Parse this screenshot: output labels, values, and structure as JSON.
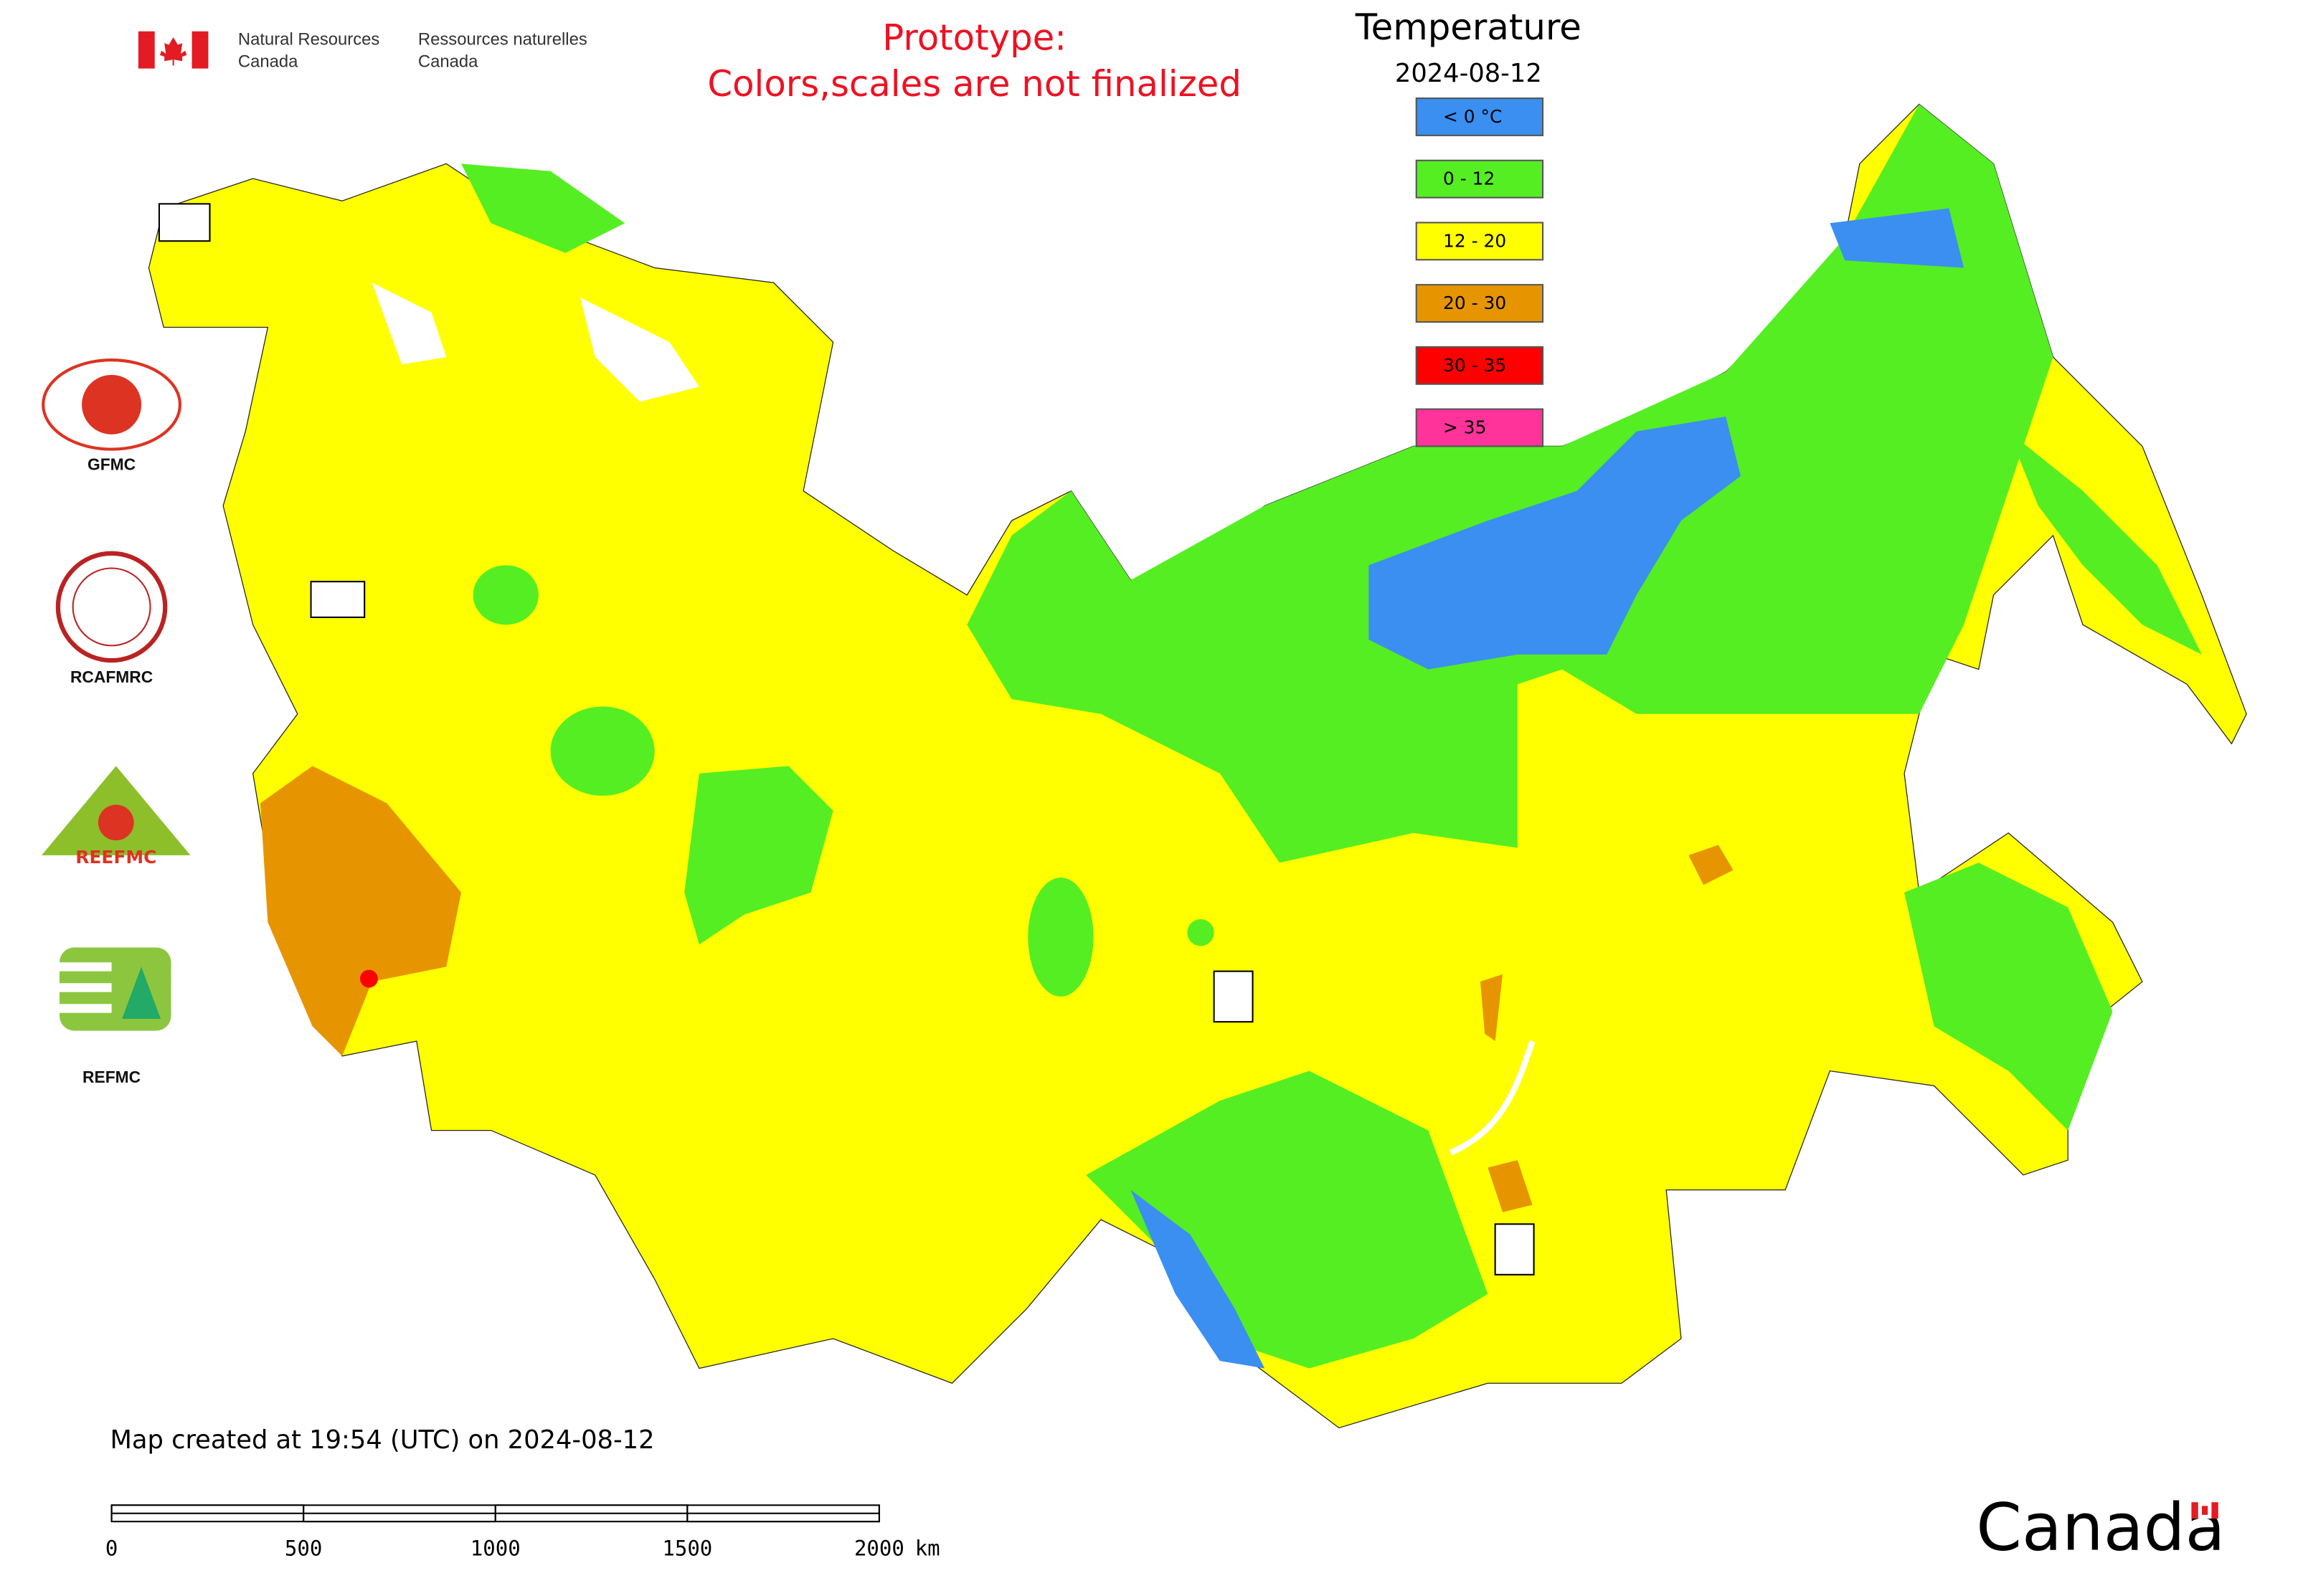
{
  "header": {
    "department_en": [
      "Natural Resources",
      "Canada"
    ],
    "department_fr": [
      "Ressources naturelles",
      "Canada"
    ],
    "notice": [
      "Prototype:",
      "Colors,scales are not finalized"
    ]
  },
  "legend": {
    "title": "Temperature",
    "date": "2024-08-12",
    "items": [
      {
        "label": "< 0 °C",
        "color": "#3a8ff0"
      },
      {
        "label": "0 - 12",
        "color": "#55ee22"
      },
      {
        "label": "12 - 20",
        "color": "#ffff00"
      },
      {
        "label": "20 - 30",
        "color": "#e69500"
      },
      {
        "label": "30 - 35",
        "color": "#ff0000"
      },
      {
        "label": "> 35",
        "color": "#ff3399"
      }
    ]
  },
  "logos": [
    "GFMC",
    "RCAFMRC",
    "REEFMC",
    "REFMC"
  ],
  "footer": {
    "created": "Map created at 19:54 (UTC) on 2024-08-12",
    "scale_bar": {
      "ticks": [
        0,
        500,
        1000,
        1500,
        2000
      ],
      "unit": "km"
    },
    "wordmark": "Canada"
  }
}
